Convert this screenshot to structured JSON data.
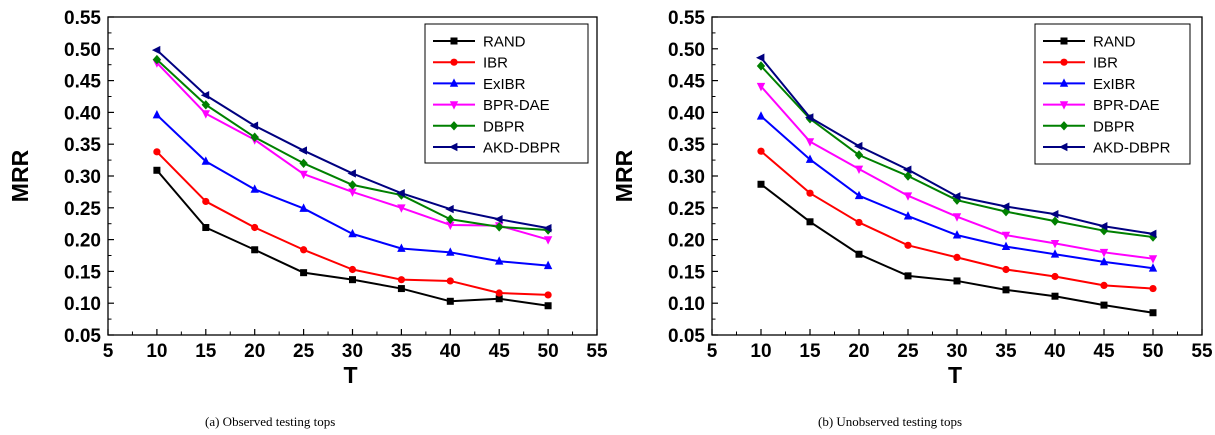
{
  "chart_data": [
    {
      "type": "line",
      "caption": "(a)  Observed testing tops",
      "xlabel": "T",
      "ylabel": "MRR",
      "xlim": [
        5,
        55
      ],
      "ylim": [
        0.05,
        0.55
      ],
      "xticks": [
        5,
        10,
        15,
        20,
        25,
        30,
        35,
        40,
        45,
        50,
        55
      ],
      "yticks": [
        0.05,
        0.1,
        0.15,
        0.2,
        0.25,
        0.3,
        0.35,
        0.4,
        0.45,
        0.5,
        0.55
      ],
      "xtick_labels": [
        "5",
        "10",
        "15",
        "20",
        "25",
        "30",
        "35",
        "40",
        "45",
        "50",
        "55"
      ],
      "ytick_labels": [
        "0.05",
        "0.10",
        "0.15",
        "0.20",
        "0.25",
        "0.30",
        "0.35",
        "0.40",
        "0.45",
        "0.50",
        "0.55"
      ],
      "grid": false,
      "legend_position": "top-right",
      "x": [
        10,
        15,
        20,
        25,
        30,
        35,
        40,
        45,
        50
      ],
      "series": [
        {
          "name": "RAND",
          "color": "#000000",
          "marker": "square",
          "values": [
            0.309,
            0.219,
            0.184,
            0.148,
            0.137,
            0.123,
            0.103,
            0.107,
            0.096
          ]
        },
        {
          "name": "IBR",
          "color": "#ff0000",
          "marker": "circle",
          "values": [
            0.338,
            0.26,
            0.219,
            0.184,
            0.153,
            0.137,
            0.135,
            0.116,
            0.113
          ]
        },
        {
          "name": "ExIBR",
          "color": "#0000ff",
          "marker": "triangle-up",
          "values": [
            0.396,
            0.323,
            0.279,
            0.249,
            0.209,
            0.186,
            0.18,
            0.166,
            0.159
          ]
        },
        {
          "name": "BPR-DAE",
          "color": "#ff00ff",
          "marker": "triangle-down",
          "values": [
            0.478,
            0.398,
            0.357,
            0.303,
            0.275,
            0.25,
            0.223,
            0.222,
            0.2
          ]
        },
        {
          "name": "DBPR",
          "color": "#008000",
          "marker": "diamond",
          "values": [
            0.483,
            0.412,
            0.361,
            0.32,
            0.286,
            0.27,
            0.232,
            0.22,
            0.215
          ]
        },
        {
          "name": "AKD-DBPR",
          "color": "#000080",
          "marker": "triangle-left",
          "values": [
            0.498,
            0.427,
            0.379,
            0.34,
            0.304,
            0.273,
            0.248,
            0.232,
            0.218
          ]
        }
      ]
    },
    {
      "type": "line",
      "caption": "(b)  Unobserved testing tops",
      "xlabel": "T",
      "ylabel": "MRR",
      "xlim": [
        5,
        55
      ],
      "ylim": [
        0.05,
        0.55
      ],
      "xticks": [
        5,
        10,
        15,
        20,
        25,
        30,
        35,
        40,
        45,
        50,
        55
      ],
      "yticks": [
        0.05,
        0.1,
        0.15,
        0.2,
        0.25,
        0.3,
        0.35,
        0.4,
        0.45,
        0.5,
        0.55
      ],
      "xtick_labels": [
        "5",
        "10",
        "15",
        "20",
        "25",
        "30",
        "35",
        "40",
        "45",
        "50",
        "55"
      ],
      "ytick_labels": [
        "0.05",
        "0.10",
        "0.15",
        "0.20",
        "0.25",
        "0.30",
        "0.35",
        "0.40",
        "0.45",
        "0.50",
        "0.55"
      ],
      "grid": false,
      "legend_position": "top-right",
      "x": [
        10,
        15,
        20,
        25,
        30,
        35,
        40,
        45,
        50
      ],
      "series": [
        {
          "name": "RAND",
          "color": "#000000",
          "marker": "square",
          "values": [
            0.287,
            0.228,
            0.177,
            0.143,
            0.135,
            0.121,
            0.111,
            0.097,
            0.085
          ]
        },
        {
          "name": "IBR",
          "color": "#ff0000",
          "marker": "circle",
          "values": [
            0.339,
            0.273,
            0.227,
            0.191,
            0.172,
            0.153,
            0.142,
            0.128,
            0.123
          ]
        },
        {
          "name": "ExIBR",
          "color": "#0000ff",
          "marker": "triangle-up",
          "values": [
            0.394,
            0.326,
            0.269,
            0.237,
            0.207,
            0.189,
            0.177,
            0.165,
            0.155
          ]
        },
        {
          "name": "BPR-DAE",
          "color": "#ff00ff",
          "marker": "triangle-down",
          "values": [
            0.441,
            0.354,
            0.311,
            0.269,
            0.236,
            0.207,
            0.194,
            0.18,
            0.17
          ]
        },
        {
          "name": "DBPR",
          "color": "#008000",
          "marker": "diamond",
          "values": [
            0.473,
            0.39,
            0.333,
            0.3,
            0.262,
            0.244,
            0.229,
            0.214,
            0.204
          ]
        },
        {
          "name": "AKD-DBPR",
          "color": "#000080",
          "marker": "triangle-left",
          "values": [
            0.486,
            0.392,
            0.347,
            0.31,
            0.268,
            0.252,
            0.24,
            0.221,
            0.209
          ]
        }
      ]
    }
  ]
}
